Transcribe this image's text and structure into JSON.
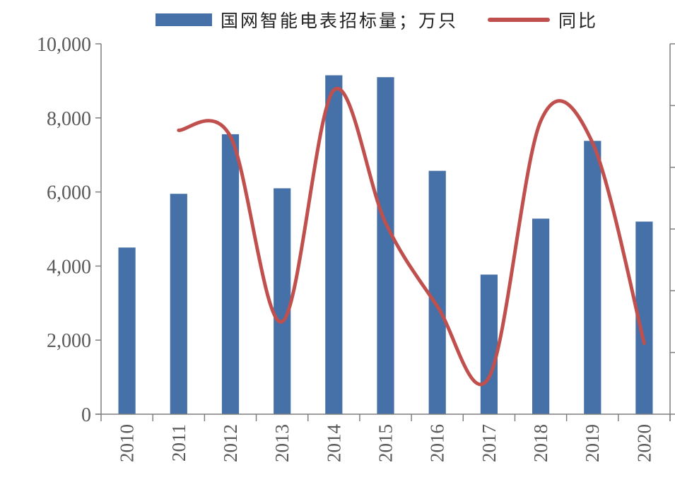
{
  "chart_data": {
    "type": "bar",
    "categories": [
      "2010",
      "2011",
      "2012",
      "2013",
      "2014",
      "2015",
      "2016",
      "2017",
      "2018",
      "2019",
      "2020"
    ],
    "series": [
      {
        "name": "国网智能电表招标量；万只",
        "type": "bar",
        "axis": "left",
        "values": [
          4500,
          5950,
          7560,
          6100,
          9150,
          9100,
          6570,
          3770,
          5280,
          7380,
          5200
        ]
      },
      {
        "name": "同比",
        "type": "line",
        "axis": "right",
        "smooth": true,
        "values": [
          null,
          32,
          30,
          -30,
          45,
          2,
          -25,
          -48,
          35,
          28,
          -37
        ]
      }
    ],
    "y_left": {
      "range": [
        0,
        10000
      ],
      "ticks": [
        "0",
        "2,000",
        "4,000",
        "6,000",
        "8,000",
        "10,000"
      ]
    },
    "y_right": {
      "range": [
        -60,
        60
      ],
      "tick_labels_visible": false
    },
    "xlabel": "",
    "ylabel": "",
    "grid": false,
    "legend_position": "top",
    "colors": {
      "bar": "#4670a8",
      "line": "#c0504d",
      "axis": "#7f7f7f",
      "text": "#595959"
    }
  }
}
